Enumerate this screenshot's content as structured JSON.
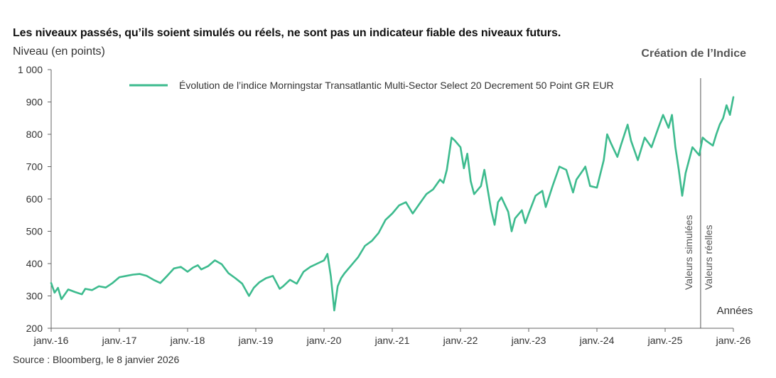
{
  "header": {
    "disclaimer": "Les niveaux passés, qu’ils soient simulés ou réels, ne sont pas un indicateur fiable des niveaux futurs.",
    "ylabel": "Niveau (en points)",
    "creation_label": "Création de l’Indice"
  },
  "footer": {
    "source": "Source : Bloomberg, le 8 janvier 2026"
  },
  "chart_data": {
    "type": "line",
    "title": "",
    "xlabel": "Années",
    "ylabel": "Niveau (en points)",
    "ylim": [
      200,
      1000
    ],
    "xlim": [
      2016.0,
      2026.0
    ],
    "y_ticks": [
      200,
      300,
      400,
      500,
      600,
      700,
      800,
      900,
      1000
    ],
    "y_tick_labels": [
      "200",
      "300",
      "400",
      "500",
      "600",
      "700",
      "800",
      "900",
      "1 000"
    ],
    "x_ticks": [
      2016,
      2017,
      2018,
      2019,
      2020,
      2021,
      2022,
      2023,
      2024,
      2025,
      2026
    ],
    "x_tick_labels": [
      "janv.-16",
      "janv.-17",
      "janv.-18",
      "janv.-19",
      "janv.-20",
      "janv.-21",
      "janv.-22",
      "janv.-23",
      "janv.-24",
      "janv.-25",
      "janv.-26"
    ],
    "grid": false,
    "legend_position": "top",
    "line_color": "#3dbb8e",
    "annotation_color": "#555555",
    "creation_date": 2025.52,
    "creation_left_label": "Valeurs simulées",
    "creation_right_label": "Valeurs réelles",
    "series": [
      {
        "name": "Évolution de l’indice Morningstar Transatlantic Multi-Sector Select 20 Decrement 50 Point GR EUR",
        "x": [
          2016.0,
          2016.05,
          2016.1,
          2016.15,
          2016.25,
          2016.35,
          2016.45,
          2016.5,
          2016.6,
          2016.7,
          2016.8,
          2016.9,
          2017.0,
          2017.1,
          2017.2,
          2017.3,
          2017.4,
          2017.5,
          2017.6,
          2017.7,
          2017.8,
          2017.9,
          2018.0,
          2018.08,
          2018.15,
          2018.2,
          2018.3,
          2018.4,
          2018.5,
          2018.6,
          2018.7,
          2018.8,
          2018.9,
          2018.97,
          2019.05,
          2019.15,
          2019.25,
          2019.35,
          2019.4,
          2019.5,
          2019.6,
          2019.7,
          2019.8,
          2019.9,
          2020.0,
          2020.05,
          2020.1,
          2020.15,
          2020.18,
          2020.2,
          2020.25,
          2020.3,
          2020.4,
          2020.5,
          2020.6,
          2020.7,
          2020.8,
          2020.9,
          2021.0,
          2021.1,
          2021.2,
          2021.3,
          2021.4,
          2021.5,
          2021.6,
          2021.7,
          2021.75,
          2021.8,
          2021.87,
          2021.92,
          2022.0,
          2022.05,
          2022.1,
          2022.15,
          2022.2,
          2022.3,
          2022.35,
          2022.45,
          2022.5,
          2022.55,
          2022.6,
          2022.7,
          2022.75,
          2022.8,
          2022.9,
          2022.95,
          2023.0,
          2023.1,
          2023.2,
          2023.25,
          2023.35,
          2023.45,
          2023.55,
          2023.65,
          2023.7,
          2023.8,
          2023.83,
          2023.9,
          2024.0,
          2024.1,
          2024.15,
          2024.2,
          2024.3,
          2024.35,
          2024.45,
          2024.5,
          2024.6,
          2024.7,
          2024.8,
          2024.9,
          2024.97,
          2025.05,
          2025.1,
          2025.15,
          2025.2,
          2025.25,
          2025.3,
          2025.4,
          2025.5,
          2025.55,
          2025.6,
          2025.7,
          2025.75,
          2025.8,
          2025.85,
          2025.9,
          2025.95,
          2026.0
        ],
        "values": [
          340,
          310,
          325,
          290,
          320,
          312,
          305,
          322,
          318,
          330,
          326,
          340,
          358,
          362,
          366,
          368,
          362,
          350,
          340,
          362,
          385,
          390,
          375,
          388,
          395,
          382,
          392,
          410,
          398,
          370,
          355,
          338,
          300,
          325,
          342,
          355,
          362,
          322,
          330,
          350,
          338,
          375,
          390,
          400,
          410,
          430,
          360,
          255,
          300,
          330,
          355,
          370,
          395,
          420,
          455,
          470,
          495,
          535,
          555,
          580,
          590,
          555,
          585,
          615,
          630,
          660,
          650,
          690,
          790,
          780,
          760,
          695,
          740,
          655,
          615,
          640,
          690,
          565,
          520,
          590,
          605,
          560,
          500,
          540,
          565,
          525,
          555,
          610,
          625,
          575,
          640,
          700,
          690,
          620,
          660,
          690,
          700,
          640,
          635,
          720,
          800,
          775,
          730,
          765,
          830,
          780,
          720,
          790,
          760,
          820,
          860,
          820,
          860,
          760,
          690,
          610,
          680,
          760,
          735,
          790,
          780,
          765,
          800,
          830,
          850,
          890,
          860,
          915
        ]
      }
    ]
  }
}
